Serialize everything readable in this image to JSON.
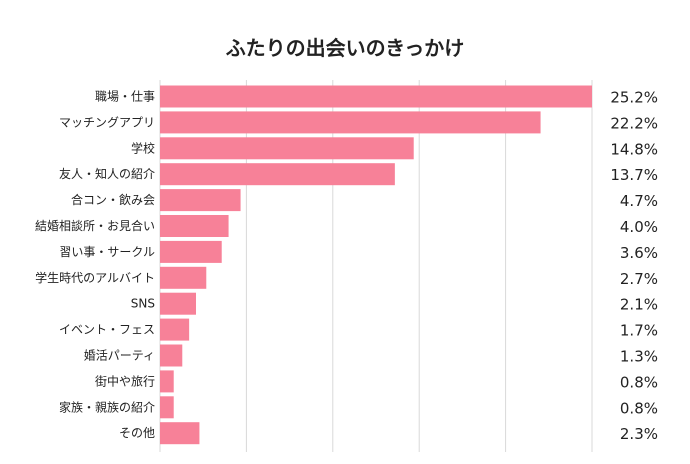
{
  "chart_data": {
    "type": "bar",
    "orientation": "horizontal",
    "title": "ふたりの出会いのきっかけ",
    "categories": [
      "職場・仕事",
      "マッチングアプリ",
      "学校",
      "友人・知人の紹介",
      "合コン・飲み会",
      "結婚相談所・お見合い",
      "習い事・サークル",
      "学生時代のアルバイト",
      "SNS",
      "イベント・フェス",
      "婚活パーティ",
      "街中や旅行",
      "家族・親族の紹介",
      "その他"
    ],
    "values": [
      25.2,
      22.2,
      14.8,
      13.7,
      4.7,
      4.0,
      3.6,
      2.7,
      2.1,
      1.7,
      1.3,
      0.8,
      0.8,
      2.3
    ],
    "value_labels": [
      "25.2%",
      "22.2%",
      "14.8%",
      "13.7%",
      "4.7%",
      "4.0%",
      "3.6%",
      "2.7%",
      "2.1%",
      "1.7%",
      "1.3%",
      "0.8%",
      "0.8%",
      "2.3%"
    ],
    "xlim": [
      0,
      25.2
    ],
    "grid": true,
    "bar_color": "#f78198",
    "grid_color": "#d9d9d9"
  }
}
